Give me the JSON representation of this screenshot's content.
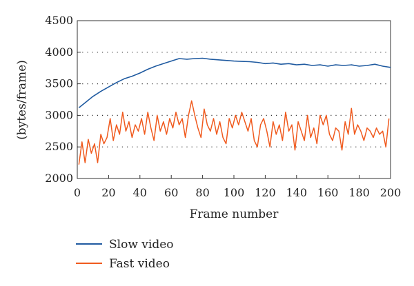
{
  "chart_data": {
    "type": "line",
    "xlabel": "Frame number",
    "ylabel": "(bytes/frame)",
    "xlim": [
      0,
      200
    ],
    "ylim": [
      2000,
      4500
    ],
    "xticks": [
      0,
      20,
      40,
      60,
      80,
      100,
      120,
      140,
      160,
      180,
      200
    ],
    "yticks": [
      2000,
      2500,
      3000,
      3500,
      4000,
      4500
    ],
    "grid": "horizontal dotted",
    "legend_position": "bottom-left",
    "series": [
      {
        "name": "Slow video",
        "color": "#1f5aa0",
        "x": [
          1,
          5,
          10,
          15,
          20,
          25,
          30,
          35,
          40,
          45,
          50,
          55,
          60,
          65,
          70,
          75,
          80,
          85,
          90,
          95,
          100,
          105,
          110,
          115,
          120,
          125,
          130,
          135,
          140,
          145,
          150,
          155,
          160,
          165,
          170,
          175,
          180,
          185,
          190,
          195,
          200
        ],
        "y": [
          3120,
          3200,
          3300,
          3380,
          3450,
          3520,
          3580,
          3620,
          3670,
          3730,
          3780,
          3820,
          3860,
          3900,
          3890,
          3900,
          3905,
          3890,
          3880,
          3870,
          3860,
          3855,
          3850,
          3840,
          3820,
          3830,
          3810,
          3820,
          3800,
          3810,
          3790,
          3800,
          3780,
          3800,
          3790,
          3800,
          3780,
          3790,
          3810,
          3780,
          3760
        ]
      },
      {
        "name": "Fast video",
        "color": "#f05a1e",
        "x": [
          1,
          3,
          5,
          7,
          9,
          11,
          13,
          15,
          17,
          19,
          21,
          23,
          25,
          27,
          29,
          31,
          33,
          35,
          37,
          39,
          41,
          43,
          45,
          47,
          49,
          51,
          53,
          55,
          57,
          59,
          61,
          63,
          65,
          67,
          69,
          71,
          73,
          75,
          77,
          79,
          81,
          83,
          85,
          87,
          89,
          91,
          93,
          95,
          97,
          99,
          101,
          103,
          105,
          107,
          109,
          111,
          113,
          115,
          117,
          119,
          121,
          123,
          125,
          127,
          129,
          131,
          133,
          135,
          137,
          139,
          141,
          143,
          145,
          147,
          149,
          151,
          153,
          155,
          157,
          159,
          161,
          163,
          165,
          167,
          169,
          171,
          173,
          175,
          177,
          179,
          181,
          183,
          185,
          187,
          189,
          191,
          193,
          195,
          197,
          199
        ],
        "y": [
          2220,
          2580,
          2250,
          2620,
          2400,
          2550,
          2250,
          2700,
          2550,
          2650,
          2950,
          2600,
          2850,
          2700,
          3050,
          2750,
          2900,
          2650,
          2850,
          2750,
          2950,
          2700,
          3050,
          2800,
          2600,
          3000,
          2750,
          2900,
          2700,
          2950,
          2800,
          3050,
          2850,
          2950,
          2650,
          3000,
          3230,
          3000,
          2800,
          2650,
          3100,
          2850,
          2750,
          2950,
          2700,
          2900,
          2650,
          2550,
          2950,
          2800,
          3000,
          2850,
          3050,
          2900,
          2750,
          2950,
          2600,
          2500,
          2850,
          2950,
          2750,
          2500,
          2900,
          2700,
          2850,
          2600,
          3050,
          2750,
          2850,
          2450,
          2900,
          2750,
          2600,
          3000,
          2650,
          2800,
          2550,
          3000,
          2850,
          3000,
          2700,
          2600,
          2800,
          2750,
          2450,
          2900,
          2700,
          3110,
          2700,
          2850,
          2750,
          2600,
          2800,
          2750,
          2650,
          2800,
          2700,
          2750,
          2500,
          2950
        ]
      }
    ]
  }
}
